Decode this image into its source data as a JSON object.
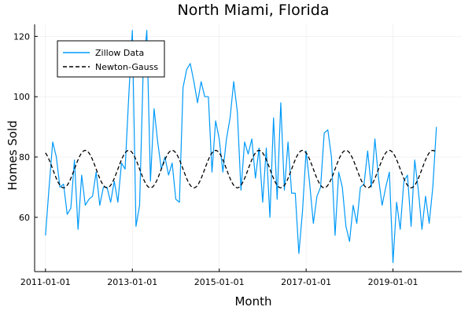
{
  "chart_data": {
    "type": "line",
    "title": "North Miami, Florida",
    "xlabel": "Month",
    "ylabel": "Homes Sold",
    "x_start": "2011-01",
    "x_step": "1 month",
    "xlim": [
      "2010-10",
      "2020-08"
    ],
    "ylim": [
      42,
      124
    ],
    "xticks": [
      "2011-01-01",
      "2013-01-01",
      "2015-01-01",
      "2017-01-01",
      "2019-01-01"
    ],
    "yticks": [
      60,
      80,
      100,
      120
    ],
    "grid": true,
    "legend_position": "top-left",
    "series": [
      {
        "name": "Zillow Data",
        "color": "#009AF9",
        "style": "solid",
        "values": [
          54,
          70,
          85,
          80,
          70,
          71,
          61,
          63,
          79,
          56,
          74,
          64,
          66,
          67,
          75,
          64,
          70,
          70,
          65,
          72,
          65,
          78,
          76,
          100,
          122,
          57,
          64,
          109,
          122,
          72,
          96,
          85,
          76,
          80,
          74,
          78,
          66,
          65,
          103,
          109,
          111,
          105,
          98,
          105,
          100,
          100,
          75,
          92,
          86,
          75,
          86,
          93,
          105,
          95,
          69,
          85,
          81,
          86,
          73,
          83,
          65,
          83,
          60,
          93,
          66,
          98,
          69,
          85,
          68,
          68,
          48,
          62,
          82,
          71,
          58,
          67,
          70,
          88,
          89,
          80,
          54,
          75,
          70,
          57,
          52,
          64,
          58,
          70,
          71,
          82,
          70,
          86,
          73,
          64,
          70,
          75,
          45,
          65,
          56,
          72,
          74,
          57,
          79,
          69,
          56,
          67,
          58,
          70,
          90
        ]
      },
      {
        "name": "Newton-Gauss",
        "color": "#000000",
        "style": "dashed",
        "function": "76 + 6.2*sin(2*pi*(t - 8)/12)",
        "values": []
      }
    ]
  }
}
